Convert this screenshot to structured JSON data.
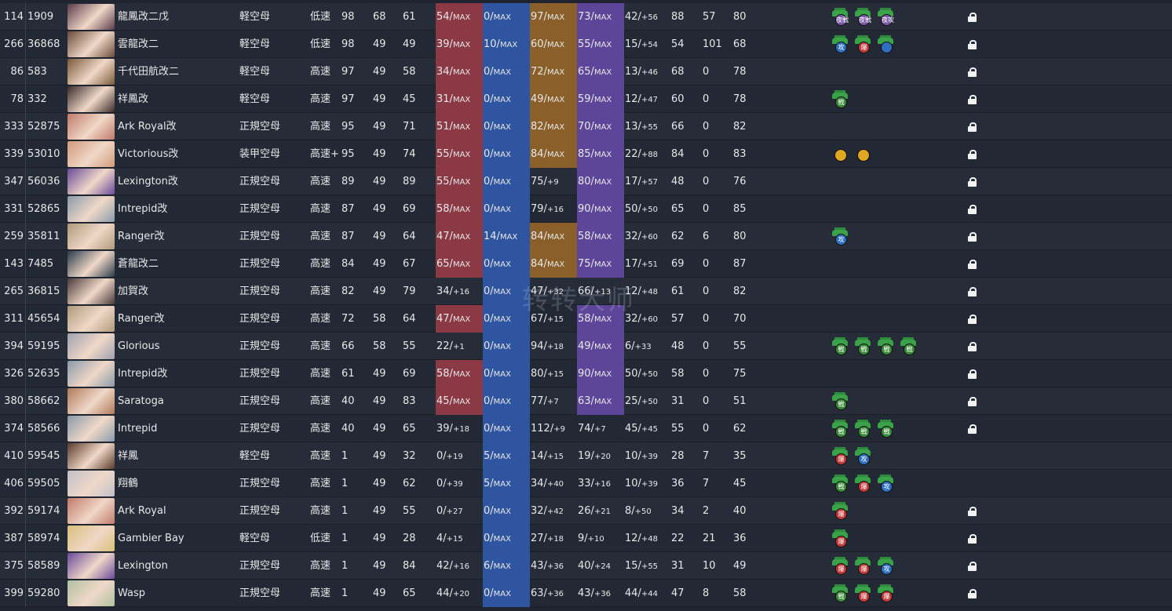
{
  "watermark": "转转大师",
  "rows": [
    {
      "idx": "114",
      "id": "1909",
      "name": "龍鳳改二戊",
      "type": "軽空母",
      "speed": "低速",
      "lv": "98",
      "hp": "68",
      "st": "61",
      "fp": "54",
      "fps": "MAX",
      "tp": "0",
      "tps": "MAX",
      "aa": "97",
      "aas": "MAX",
      "ar": "73",
      "ars": "MAX",
      "lk": "42",
      "lks": "+56",
      "n1": "88",
      "n2": "57",
      "n3": "80",
      "equip": [
        [
          "b-night",
          "夜戦"
        ],
        [
          "b-night",
          "夜戦"
        ],
        [
          "b-night",
          "夜攻"
        ]
      ],
      "locked": true,
      "hue": "#5a3a4a"
    },
    {
      "idx": "266",
      "id": "36868",
      "name": "雲龍改二",
      "type": "軽空母",
      "speed": "低速",
      "lv": "98",
      "hp": "49",
      "st": "49",
      "fp": "39",
      "fps": "MAX",
      "tp": "10",
      "tps": "MAX",
      "aa": "60",
      "aas": "MAX",
      "ar": "55",
      "ars": "MAX",
      "lk": "15",
      "lks": "+54",
      "n1": "54",
      "n2": "101",
      "n3": "68",
      "equip": [
        [
          "b-attacker",
          "攻"
        ],
        [
          "b-bomber",
          "爆"
        ],
        [
          "b-attacker",
          ""
        ]
      ],
      "locked": true,
      "hue": "#6a4a3a"
    },
    {
      "idx": "86",
      "id": "583",
      "name": "千代田航改二",
      "type": "軽空母",
      "speed": "高速",
      "lv": "97",
      "hp": "49",
      "st": "58",
      "fp": "34",
      "fps": "MAX",
      "tp": "0",
      "tps": "MAX",
      "aa": "72",
      "aas": "MAX",
      "ar": "65",
      "ars": "MAX",
      "lk": "13",
      "lks": "+46",
      "n1": "68",
      "n2": "0",
      "n3": "78",
      "equip": [],
      "locked": true,
      "hue": "#7a5a3a"
    },
    {
      "idx": "78",
      "id": "332",
      "name": "祥鳳改",
      "type": "軽空母",
      "speed": "高速",
      "lv": "97",
      "hp": "49",
      "st": "45",
      "fp": "31",
      "fps": "MAX",
      "tp": "0",
      "tps": "MAX",
      "aa": "49",
      "aas": "MAX",
      "ar": "59",
      "ars": "MAX",
      "lk": "12",
      "lks": "+47",
      "n1": "60",
      "n2": "0",
      "n3": "78",
      "equip": [
        [
          "b-fighter",
          "戦"
        ]
      ],
      "locked": true,
      "hue": "#3a2a2a"
    },
    {
      "idx": "333",
      "id": "52875",
      "name": "Ark Royal改",
      "type": "正規空母",
      "speed": "高速",
      "lv": "95",
      "hp": "49",
      "st": "71",
      "fp": "51",
      "fps": "MAX",
      "tp": "0",
      "tps": "MAX",
      "aa": "82",
      "aas": "MAX",
      "ar": "70",
      "ars": "MAX",
      "lk": "13",
      "lks": "+55",
      "n1": "66",
      "n2": "0",
      "n3": "82",
      "equip": [],
      "locked": true,
      "hue": "#c07a6a"
    },
    {
      "idx": "339",
      "id": "53010",
      "name": "Victorious改",
      "type": "装甲空母",
      "speed": "高速+",
      "lv": "95",
      "hp": "49",
      "st": "74",
      "fp": "55",
      "fps": "MAX",
      "tp": "0",
      "tps": "MAX",
      "aa": "84",
      "aas": "MAX",
      "ar": "85",
      "ars": "MAX",
      "lk": "22",
      "lks": "+88",
      "n1": "84",
      "n2": "0",
      "n3": "83",
      "equip": [
        [
          "b-sun",
          ""
        ],
        [
          "b-sun",
          ""
        ]
      ],
      "locked": true,
      "hue": "#d09a7a"
    },
    {
      "idx": "347",
      "id": "56036",
      "name": "Lexington改",
      "type": "正規空母",
      "speed": "高速",
      "lv": "89",
      "hp": "49",
      "st": "89",
      "fp": "55",
      "fps": "MAX",
      "tp": "0",
      "tps": "MAX",
      "aa": "75",
      "aas": "+9",
      "ar": "80",
      "ars": "MAX",
      "lk": "17",
      "lks": "+57",
      "n1": "48",
      "n2": "0",
      "n3": "76",
      "equip": [],
      "locked": true,
      "hue": "#6a4a9a"
    },
    {
      "idx": "331",
      "id": "52865",
      "name": "Intrepid改",
      "type": "正規空母",
      "speed": "高速",
      "lv": "87",
      "hp": "49",
      "st": "69",
      "fp": "58",
      "fps": "MAX",
      "tp": "0",
      "tps": "MAX",
      "aa": "79",
      "aas": "+16",
      "ar": "90",
      "ars": "MAX",
      "lk": "50",
      "lks": "+50",
      "n1": "65",
      "n2": "0",
      "n3": "85",
      "equip": [],
      "locked": true,
      "hue": "#8a9aaa"
    },
    {
      "idx": "259",
      "id": "35811",
      "name": "Ranger改",
      "type": "正規空母",
      "speed": "高速",
      "lv": "87",
      "hp": "49",
      "st": "64",
      "fp": "47",
      "fps": "MAX",
      "tp": "14",
      "tps": "MAX",
      "aa": "84",
      "aas": "MAX",
      "ar": "58",
      "ars": "MAX",
      "lk": "32",
      "lks": "+60",
      "n1": "62",
      "n2": "6",
      "n3": "80",
      "equip": [
        [
          "b-attacker",
          "攻"
        ]
      ],
      "locked": true,
      "hue": "#b09a7a"
    },
    {
      "idx": "143",
      "id": "7485",
      "name": "蒼龍改二",
      "type": "正規空母",
      "speed": "高速",
      "lv": "84",
      "hp": "49",
      "st": "67",
      "fp": "65",
      "fps": "MAX",
      "tp": "0",
      "tps": "MAX",
      "aa": "84",
      "aas": "MAX",
      "ar": "75",
      "ars": "MAX",
      "lk": "17",
      "lks": "+51",
      "n1": "69",
      "n2": "0",
      "n3": "87",
      "equip": [],
      "locked": true,
      "hue": "#2a3a4a"
    },
    {
      "idx": "265",
      "id": "36815",
      "name": "加賀改",
      "type": "正規空母",
      "speed": "高速",
      "lv": "82",
      "hp": "49",
      "st": "79",
      "fp": "34",
      "fps": "+16",
      "tp": "0",
      "tps": "MAX",
      "aa": "47",
      "aas": "+32",
      "ar": "66",
      "ars": "+13",
      "lk": "12",
      "lks": "+48",
      "n1": "61",
      "n2": "0",
      "n3": "82",
      "equip": [],
      "locked": true,
      "hue": "#4a3a3a"
    },
    {
      "idx": "311",
      "id": "45654",
      "name": "Ranger改",
      "type": "正規空母",
      "speed": "高速",
      "lv": "72",
      "hp": "58",
      "st": "64",
      "fp": "47",
      "fps": "MAX",
      "tp": "0",
      "tps": "MAX",
      "aa": "67",
      "aas": "+15",
      "ar": "58",
      "ars": "MAX",
      "lk": "32",
      "lks": "+60",
      "n1": "57",
      "n2": "0",
      "n3": "70",
      "equip": [],
      "locked": true,
      "hue": "#b09a7a"
    },
    {
      "idx": "394",
      "id": "59195",
      "name": "Glorious",
      "type": "正規空母",
      "speed": "高速",
      "lv": "66",
      "hp": "58",
      "st": "55",
      "fp": "22",
      "fps": "+1",
      "tp": "0",
      "tps": "MAX",
      "aa": "94",
      "aas": "+18",
      "ar": "49",
      "ars": "MAX",
      "lk": "6",
      "lks": "+33",
      "n1": "48",
      "n2": "0",
      "n3": "55",
      "equip": [
        [
          "b-fighter",
          "戦"
        ],
        [
          "b-fighter",
          "戦"
        ],
        [
          "b-fighter",
          "戦"
        ],
        [
          "b-fighter",
          "戦"
        ]
      ],
      "locked": true,
      "hue": "#a0a0b0"
    },
    {
      "idx": "326",
      "id": "52635",
      "name": "Intrepid改",
      "type": "正規空母",
      "speed": "高速",
      "lv": "61",
      "hp": "49",
      "st": "69",
      "fp": "58",
      "fps": "MAX",
      "tp": "0",
      "tps": "MAX",
      "aa": "80",
      "aas": "+15",
      "ar": "90",
      "ars": "MAX",
      "lk": "50",
      "lks": "+50",
      "n1": "58",
      "n2": "0",
      "n3": "75",
      "equip": [],
      "locked": true,
      "hue": "#8a9aaa"
    },
    {
      "idx": "380",
      "id": "58662",
      "name": "Saratoga",
      "type": "正規空母",
      "speed": "高速",
      "lv": "40",
      "hp": "49",
      "st": "83",
      "fp": "45",
      "fps": "MAX",
      "tp": "0",
      "tps": "MAX",
      "aa": "77",
      "aas": "+7",
      "ar": "63",
      "ars": "MAX",
      "lk": "25",
      "lks": "+50",
      "n1": "31",
      "n2": "0",
      "n3": "51",
      "equip": [
        [
          "b-fighter",
          "戦"
        ]
      ],
      "locked": true,
      "hue": "#b07a5a"
    },
    {
      "idx": "374",
      "id": "58566",
      "name": "Intrepid",
      "type": "正規空母",
      "speed": "高速",
      "lv": "40",
      "hp": "49",
      "st": "65",
      "fp": "39",
      "fps": "+18",
      "tp": "0",
      "tps": "MAX",
      "aa": "112",
      "aas": "+9",
      "ar": "74",
      "ars": "+7",
      "lk": "45",
      "lks": "+45",
      "n1": "55",
      "n2": "0",
      "n3": "62",
      "equip": [
        [
          "b-fighter",
          "戦"
        ],
        [
          "b-fighter",
          "戦"
        ],
        [
          "b-fighter",
          "戦"
        ]
      ],
      "locked": true,
      "hue": "#8a9aaa"
    },
    {
      "idx": "410",
      "id": "59545",
      "name": "祥鳳",
      "type": "軽空母",
      "speed": "高速",
      "lv": "1",
      "hp": "49",
      "st": "32",
      "fp": "0",
      "fps": "+19",
      "tp": "5",
      "tps": "MAX",
      "aa": "14",
      "aas": "+15",
      "ar": "19",
      "ars": "+20",
      "lk": "10",
      "lks": "+39",
      "n1": "28",
      "n2": "7",
      "n3": "35",
      "equip": [
        [
          "b-bomber",
          "爆"
        ],
        [
          "b-attacker",
          "攻"
        ]
      ],
      "locked": false,
      "hue": "#5a3a2a"
    },
    {
      "idx": "406",
      "id": "59505",
      "name": "翔鶴",
      "type": "正規空母",
      "speed": "高速",
      "lv": "1",
      "hp": "49",
      "st": "62",
      "fp": "0",
      "fps": "+39",
      "tp": "5",
      "tps": "MAX",
      "aa": "34",
      "aas": "+40",
      "ar": "33",
      "ars": "+16",
      "lk": "10",
      "lks": "+39",
      "n1": "36",
      "n2": "7",
      "n3": "45",
      "equip": [
        [
          "b-fighter",
          "戦"
        ],
        [
          "b-bomber",
          "爆"
        ],
        [
          "b-attacker",
          "攻"
        ]
      ],
      "locked": false,
      "hue": "#c0c0c8"
    },
    {
      "idx": "392",
      "id": "59174",
      "name": "Ark Royal",
      "type": "正規空母",
      "speed": "高速",
      "lv": "1",
      "hp": "49",
      "st": "55",
      "fp": "0",
      "fps": "+27",
      "tp": "0",
      "tps": "MAX",
      "aa": "32",
      "aas": "+42",
      "ar": "26",
      "ars": "+21",
      "lk": "8",
      "lks": "+50",
      "n1": "34",
      "n2": "2",
      "n3": "40",
      "equip": [
        [
          "b-bomber",
          "爆"
        ]
      ],
      "locked": true,
      "hue": "#c07a6a"
    },
    {
      "idx": "387",
      "id": "58974",
      "name": "Gambier Bay",
      "type": "軽空母",
      "speed": "低速",
      "lv": "1",
      "hp": "49",
      "st": "28",
      "fp": "4",
      "fps": "+15",
      "tp": "0",
      "tps": "MAX",
      "aa": "27",
      "aas": "+18",
      "ar": "9",
      "ars": "+10",
      "lk": "12",
      "lks": "+48",
      "n1": "22",
      "n2": "21",
      "n3": "36",
      "equip": [
        [
          "b-bomber",
          "爆"
        ]
      ],
      "locked": true,
      "hue": "#d8c07a"
    },
    {
      "idx": "375",
      "id": "58589",
      "name": "Lexington",
      "type": "正規空母",
      "speed": "高速",
      "lv": "1",
      "hp": "49",
      "st": "84",
      "fp": "42",
      "fps": "+16",
      "tp": "6",
      "tps": "MAX",
      "aa": "43",
      "aas": "+36",
      "ar": "40",
      "ars": "+24",
      "lk": "15",
      "lks": "+55",
      "n1": "31",
      "n2": "10",
      "n3": "49",
      "equip": [
        [
          "b-bomber",
          "爆"
        ],
        [
          "b-bomber",
          "爆"
        ],
        [
          "b-attacker",
          "攻"
        ]
      ],
      "locked": true,
      "hue": "#6a4a9a"
    },
    {
      "idx": "399",
      "id": "59280",
      "name": "Wasp",
      "type": "正規空母",
      "speed": "高速",
      "lv": "1",
      "hp": "49",
      "st": "65",
      "fp": "44",
      "fps": "+20",
      "tp": "0",
      "tps": "MAX",
      "aa": "63",
      "aas": "+36",
      "ar": "43",
      "ars": "+36",
      "lk": "44",
      "lks": "+44",
      "n1": "47",
      "n2": "8",
      "n3": "58",
      "equip": [
        [
          "b-fighter",
          "戦"
        ],
        [
          "b-bomber",
          "爆"
        ],
        [
          "b-bomber",
          "爆"
        ]
      ],
      "locked": true,
      "hue": "#b0c0a0"
    }
  ]
}
